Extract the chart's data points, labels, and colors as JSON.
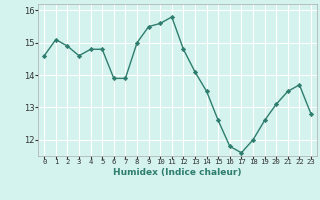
{
  "x": [
    0,
    1,
    2,
    3,
    4,
    5,
    6,
    7,
    8,
    9,
    10,
    11,
    12,
    13,
    14,
    15,
    16,
    17,
    18,
    19,
    20,
    21,
    22,
    23
  ],
  "y": [
    14.6,
    15.1,
    14.9,
    14.6,
    14.8,
    14.8,
    13.9,
    13.9,
    15.0,
    15.5,
    15.6,
    15.8,
    14.8,
    14.1,
    13.5,
    12.6,
    11.8,
    11.6,
    12.0,
    12.6,
    13.1,
    13.5,
    13.7,
    12.8
  ],
  "line_color": "#2e7d6e",
  "marker": "D",
  "marker_size": 2.2,
  "bg_color": "#d4f3ee",
  "grid_color": "#ffffff",
  "xlabel": "Humidex (Indice chaleur)",
  "ylim": [
    11.5,
    16.2
  ],
  "xlim": [
    -0.5,
    23.5
  ],
  "yticks": [
    12,
    13,
    14,
    15,
    16
  ],
  "xtick_labels": [
    "0",
    "1",
    "2",
    "3",
    "4",
    "5",
    "6",
    "7",
    "8",
    "9",
    "10",
    "11",
    "12",
    "13",
    "14",
    "15",
    "16",
    "17",
    "18",
    "19",
    "20",
    "21",
    "22",
    "23"
  ],
  "xlabel_fontsize": 6.5,
  "ytick_fontsize": 6.0,
  "xtick_fontsize": 5.2,
  "linewidth": 1.0
}
